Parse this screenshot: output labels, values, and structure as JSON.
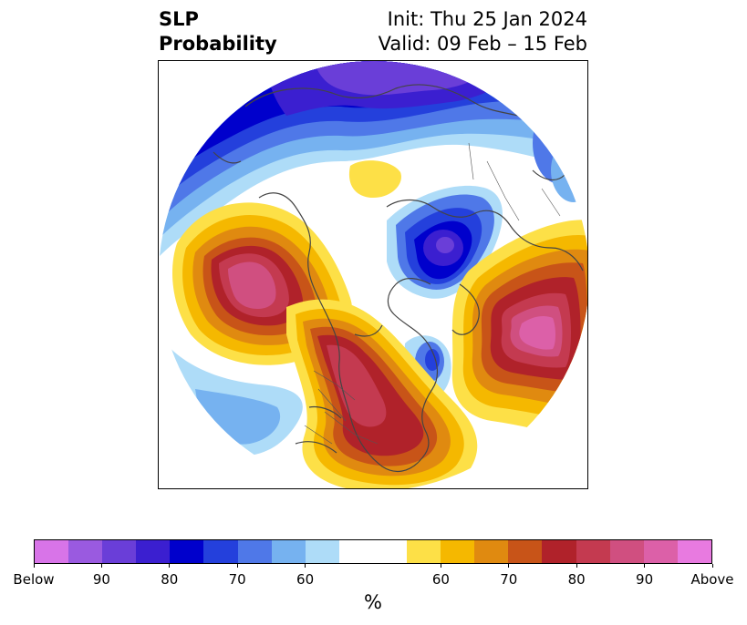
{
  "title": {
    "left_line1": "SLP",
    "left_line2": "Probability",
    "right_line1": "Init: Thu 25 Jan 2024",
    "right_line2": "Valid: 09 Feb – 15 Feb"
  },
  "colorbar": {
    "below_colors": [
      "#d874e8",
      "#9a5ae0",
      "#6a3ed8",
      "#3b1fd0",
      "#0000cc",
      "#2440dc",
      "#4f78e8",
      "#76b2f0",
      "#aedcf8"
    ],
    "neutral_color": "#ffffff",
    "above_colors": [
      "#fde047",
      "#f5b800",
      "#e08a10",
      "#c85418",
      "#b0222a",
      "#c43a50",
      "#d04f80",
      "#dc60a8",
      "#e87ae0"
    ],
    "tick_labels": [
      "Below",
      "90",
      "80",
      "70",
      "60",
      "60",
      "70",
      "80",
      "90",
      "Above"
    ],
    "unit_label": "%"
  },
  "map": {
    "projection": "north-polar-stereographic",
    "ocean_fill": "#ffffff",
    "coastline_color": "#444444"
  }
}
